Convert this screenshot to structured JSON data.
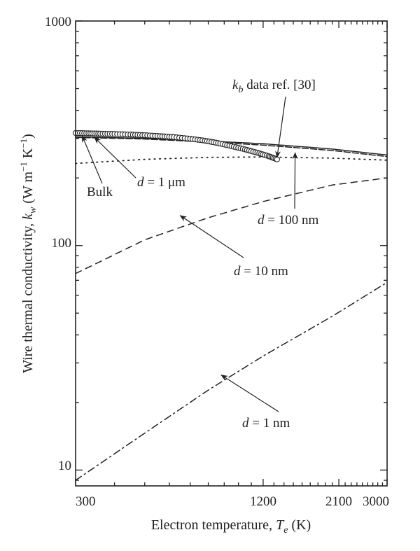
{
  "chart_data": {
    "type": "line",
    "xscale": "log",
    "yscale": "log",
    "xlim": [
      300,
      3000
    ],
    "ylim": [
      8.5,
      1000
    ],
    "xticks": [
      300,
      1200,
      2100,
      3000
    ],
    "xtick_labels": [
      "300",
      "1200",
      "2100",
      "3000"
    ],
    "yticks": [
      10,
      100,
      1000
    ],
    "ytick_labels": [
      "10",
      "100",
      "1000"
    ],
    "xlabel": {
      "main": "Electron temperature, ",
      "var": "T",
      "sub": "e",
      "unit": " (K)"
    },
    "ylabel": {
      "main": "Wire thermal conductivity, ",
      "var": "k",
      "sub": "w",
      "unit_open": " (W m",
      "sup1": "−1",
      "unit_mid": " K",
      "sup2": "−1",
      "unit_close": ")"
    },
    "grid": false,
    "legend": "none",
    "series": [
      {
        "id": "bulk",
        "style": "solid",
        "x": [
          300,
          500,
          800,
          1200,
          2000,
          3000
        ],
        "y": [
          305,
          300,
          292,
          284,
          269,
          253
        ]
      },
      {
        "id": "d1um",
        "style": "dashed-long",
        "x": [
          300,
          500,
          800,
          1200,
          2000,
          3000
        ],
        "y": [
          303,
          298,
          289,
          280,
          265,
          249
        ]
      },
      {
        "id": "d100nm",
        "style": "dotted",
        "x": [
          300,
          500,
          800,
          1200,
          2000,
          3000
        ],
        "y": [
          232,
          242,
          247,
          248,
          245,
          240
        ]
      },
      {
        "id": "d10nm",
        "style": "dashed",
        "x": [
          300,
          500,
          800,
          1200,
          2000,
          3000
        ],
        "y": [
          75,
          106,
          133,
          157,
          186,
          200
        ]
      },
      {
        "id": "d1nm",
        "style": "dashdot",
        "x": [
          300,
          500,
          800,
          1200,
          2000,
          3000
        ],
        "y": [
          9.0,
          14.6,
          22.7,
          32.2,
          48.4,
          68.5
        ]
      }
    ],
    "markers": {
      "id": "kb-data",
      "style": "open-circles",
      "x": [
        300,
        330,
        360,
        400,
        450,
        500,
        560,
        620,
        700,
        780,
        860,
        950,
        1050,
        1150,
        1250,
        1330
      ],
      "y": [
        317,
        316,
        315,
        314,
        312,
        310,
        307,
        304,
        299,
        293,
        286,
        277,
        268,
        259,
        250,
        242
      ]
    },
    "annotations": [
      {
        "id": "kb-label",
        "var": "k",
        "sub": "b",
        "text": " data ref. [30]",
        "arrow_to": [
          1330,
          247
        ]
      },
      {
        "id": "bulk-label",
        "text": "Bulk",
        "arrow_to": [
          315,
          308
        ]
      },
      {
        "id": "d1um-label",
        "var": "d",
        "text": " = 1 μm",
        "arrow_to": [
          345,
          303
        ]
      },
      {
        "id": "d100nm-label",
        "var": "d",
        "text": " = 100 nm",
        "arrow_to": [
          1520,
          259
        ]
      },
      {
        "id": "d10nm-label",
        "var": "d",
        "text": " = 10 nm",
        "arrow_to": [
          650,
          136
        ]
      },
      {
        "id": "d1nm-label",
        "var": "d",
        "text": " = 1 nm",
        "arrow_to": [
          880,
          26.5
        ]
      }
    ]
  }
}
